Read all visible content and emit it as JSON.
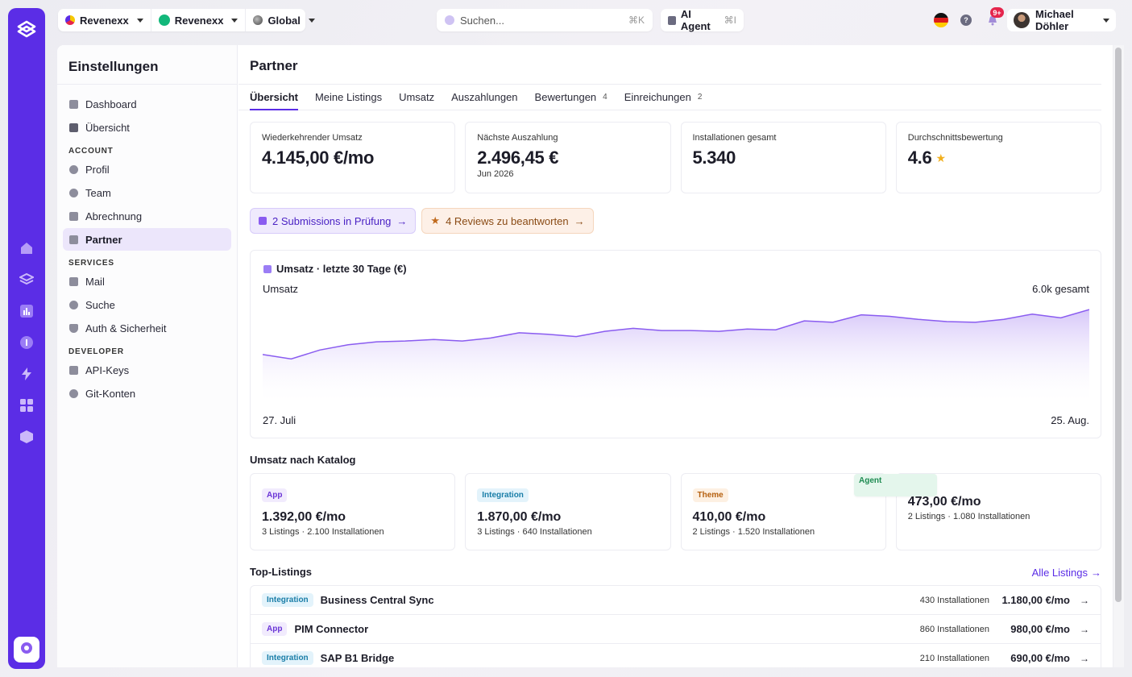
{
  "topbar": {
    "org": "Revenexx",
    "workspace": "Revenexx",
    "region": "Global",
    "search_placeholder": "Suchen...",
    "search_shortcut": "⌘K",
    "agent_label": "AI Agent",
    "agent_shortcut": "⌘I",
    "notification_count": "9+",
    "user_name": "Michael Döhler",
    "help": "?"
  },
  "sidebar": {
    "title": "Einstellungen",
    "items_top": [
      {
        "label": "Dashboard",
        "icon": "dashboard-icon"
      },
      {
        "label": "Übersicht",
        "icon": "overview-icon"
      }
    ],
    "section_account": "ACCOUNT",
    "items_account": [
      {
        "label": "Profil",
        "icon": "user-icon"
      },
      {
        "label": "Team",
        "icon": "team-icon"
      },
      {
        "label": "Abrechnung",
        "icon": "billing-icon"
      },
      {
        "label": "Partner",
        "icon": "store-icon"
      }
    ],
    "section_services": "SERVICES",
    "items_services": [
      {
        "label": "Mail",
        "icon": "mail-icon"
      },
      {
        "label": "Suche",
        "icon": "search-icon"
      },
      {
        "label": "Auth & Sicherheit",
        "icon": "shield-icon"
      }
    ],
    "section_developer": "DEVELOPER",
    "items_developer": [
      {
        "label": "API-Keys",
        "icon": "key-icon"
      },
      {
        "label": "Git-Konten",
        "icon": "git-icon"
      }
    ]
  },
  "page": {
    "title": "Partner",
    "tabs": [
      {
        "label": "Übersicht",
        "count": ""
      },
      {
        "label": "Meine Listings",
        "count": ""
      },
      {
        "label": "Umsatz",
        "count": ""
      },
      {
        "label": "Auszahlungen",
        "count": ""
      },
      {
        "label": "Bewertungen",
        "count": "4"
      },
      {
        "label": "Einreichungen",
        "count": "2"
      }
    ]
  },
  "kpis": [
    {
      "label": "Wiederkehrender Umsatz",
      "value": "4.145,00 €/mo",
      "sub": ""
    },
    {
      "label": "Nächste Auszahlung",
      "value": "2.496,45 €",
      "sub": "Jun 2026"
    },
    {
      "label": "Installationen gesamt",
      "value": "5.340",
      "sub": ""
    },
    {
      "label": "Durchschnittsbewertung",
      "value": "4.6",
      "sub": ""
    }
  ],
  "actions": {
    "submissions": "2 Submissions in Prüfung",
    "reviews": "4 Reviews zu beantworten"
  },
  "chart_data": {
    "type": "area",
    "title": "Umsatz · letzte 30 Tage (€)",
    "series_label": "Umsatz",
    "total_label": "6.0k gesamt",
    "x_start": "27. Juli",
    "x_end": "25. Aug.",
    "values": [
      168,
      162,
      174,
      181,
      185,
      186,
      188,
      186,
      190,
      197,
      195,
      192,
      199,
      203,
      200,
      200,
      199,
      202,
      201,
      213,
      211,
      221,
      219,
      215,
      212,
      211,
      215,
      222,
      217,
      228
    ]
  },
  "catalog": {
    "title": "Umsatz nach Katalog",
    "items": [
      {
        "tag": "App",
        "value": "1.392,00 €/mo",
        "sub": "3 Listings · 2.100 Installationen"
      },
      {
        "tag": "Integration",
        "value": "1.870,00 €/mo",
        "sub": "3 Listings · 640 Installationen"
      },
      {
        "tag": "Theme",
        "value": "410,00 €/mo",
        "sub": "2 Listings · 1.520 Installationen"
      },
      {
        "tag": "Agent",
        "value": "473,00 €/mo",
        "sub": "2 Listings · 1.080 Installationen"
      }
    ]
  },
  "top_listings": {
    "title": "Top-Listings",
    "all_link": "Alle Listings",
    "rows": [
      {
        "tag": "Integration",
        "name": "Business Central Sync",
        "installs": "430 Installationen",
        "revenue": "1.180,00 €/mo"
      },
      {
        "tag": "App",
        "name": "PIM Connector",
        "installs": "860 Installationen",
        "revenue": "980,00 €/mo"
      },
      {
        "tag": "Integration",
        "name": "SAP B1 Bridge",
        "installs": "210 Installationen",
        "revenue": "690,00 €/mo"
      }
    ]
  },
  "colors": {
    "brand": "#5b2de6",
    "chart_line": "#8a5cf0",
    "accent_link": "#5b2de6"
  }
}
